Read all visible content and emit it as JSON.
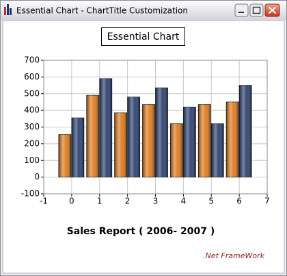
{
  "window": {
    "title": "Essential Chart - ChartTitle Customization"
  },
  "chart_data": {
    "type": "bar",
    "title": "Essential Chart",
    "x": [
      0,
      1,
      2,
      3,
      4,
      5,
      6
    ],
    "series": [
      {
        "color": "#e07a1c",
        "values": [
          255,
          490,
          385,
          435,
          320,
          435,
          450
        ]
      },
      {
        "color": "#2a3f6e",
        "values": [
          355,
          590,
          480,
          535,
          420,
          320,
          550
        ]
      }
    ],
    "xlim": [
      -1,
      7
    ],
    "xticks": [
      -1,
      0,
      1,
      2,
      3,
      4,
      5,
      6,
      7
    ],
    "ylim": [
      -100,
      700
    ],
    "yticks": [
      -100,
      0,
      100,
      200,
      300,
      400,
      500,
      600,
      700
    ],
    "grid": true,
    "xlabel": "Sales Report ( 2006- 2007 )",
    "annotation": ".Net FrameWork"
  }
}
